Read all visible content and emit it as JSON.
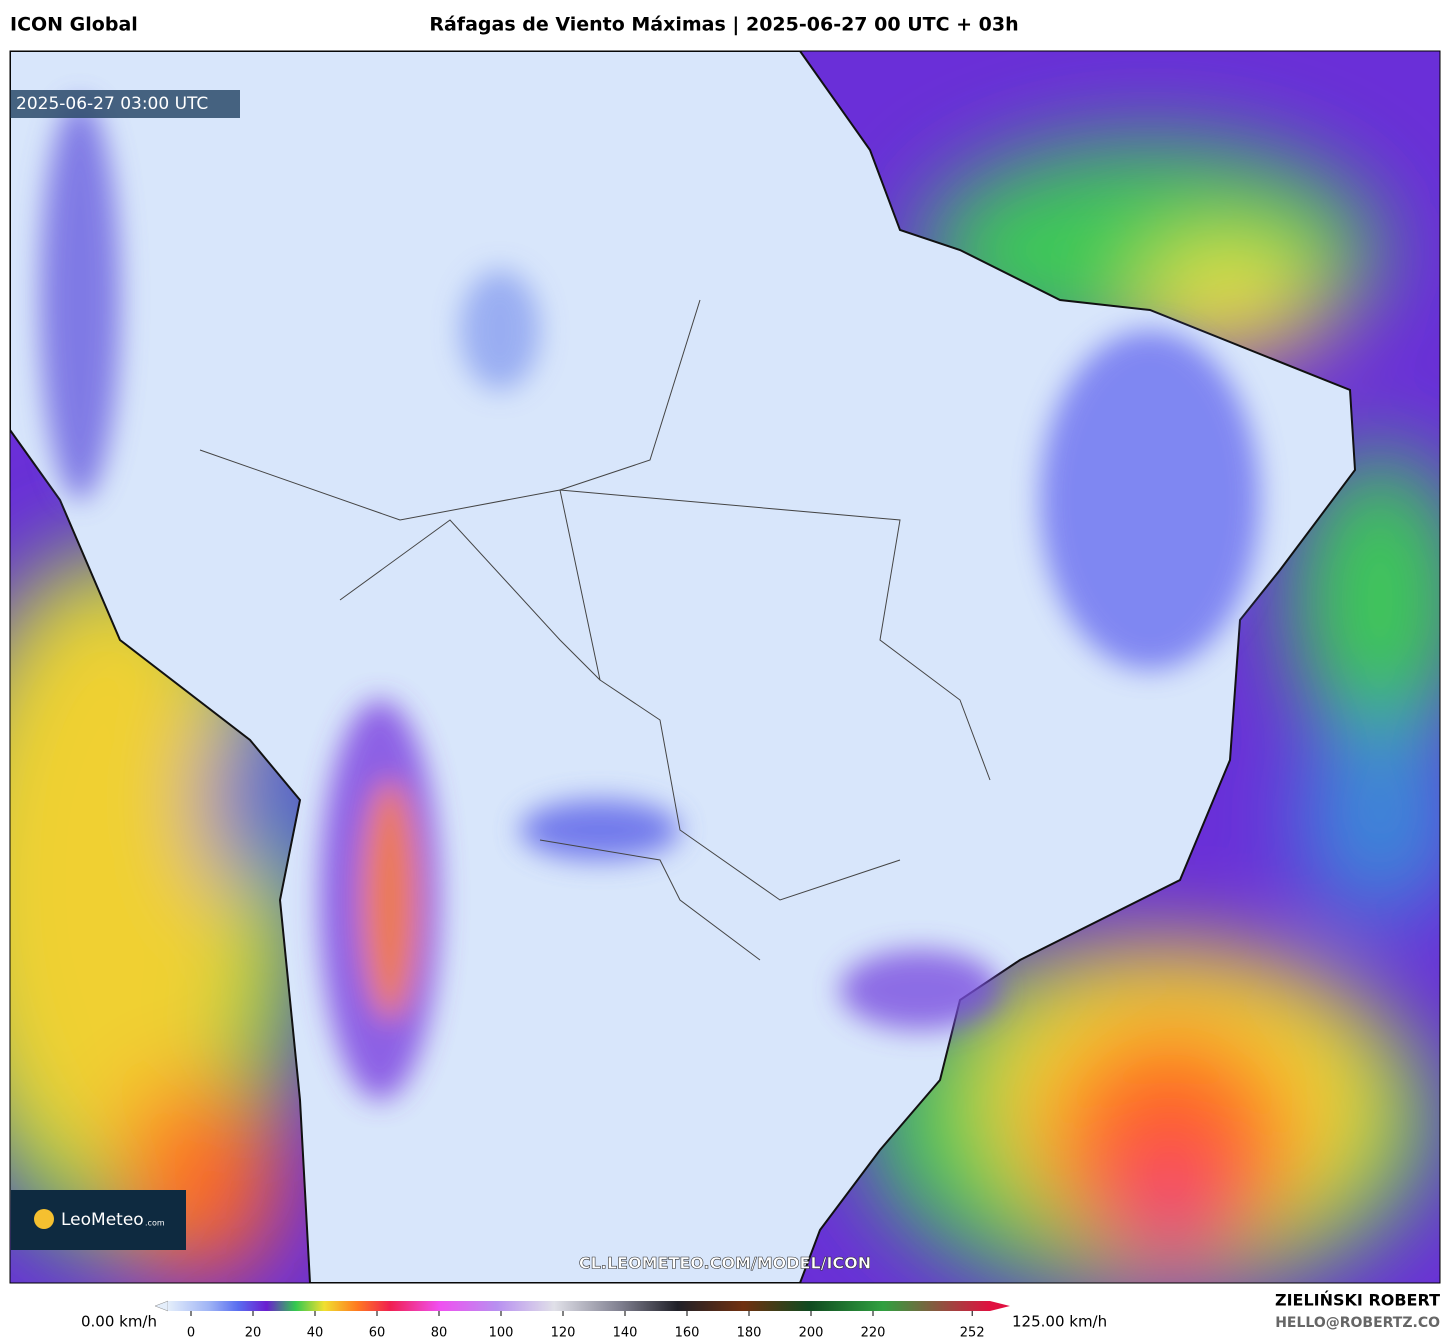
{
  "header": {
    "model": "ICON Global",
    "title": "Ráfagas de Viento Máximas | 2025-06-27 00 UTC + 03h"
  },
  "map": {
    "timestamp": "2025-06-27 03:00 UTC",
    "watermark": "CL.LEOMETEO.COM/MODEL/ICON",
    "logo": {
      "name": "LeoMeteo",
      "suffix": ".com"
    }
  },
  "colorbar": {
    "min_label": "0.00 km/h",
    "max_label": "125.00 km/h",
    "ticks": [
      0,
      20,
      40,
      60,
      80,
      100,
      120,
      140,
      160,
      180,
      200,
      220,
      252
    ]
  },
  "footer": {
    "author": "ZIELIŃSKI ROBERT",
    "email": "HELLO@ROBERTZ.CO"
  }
}
